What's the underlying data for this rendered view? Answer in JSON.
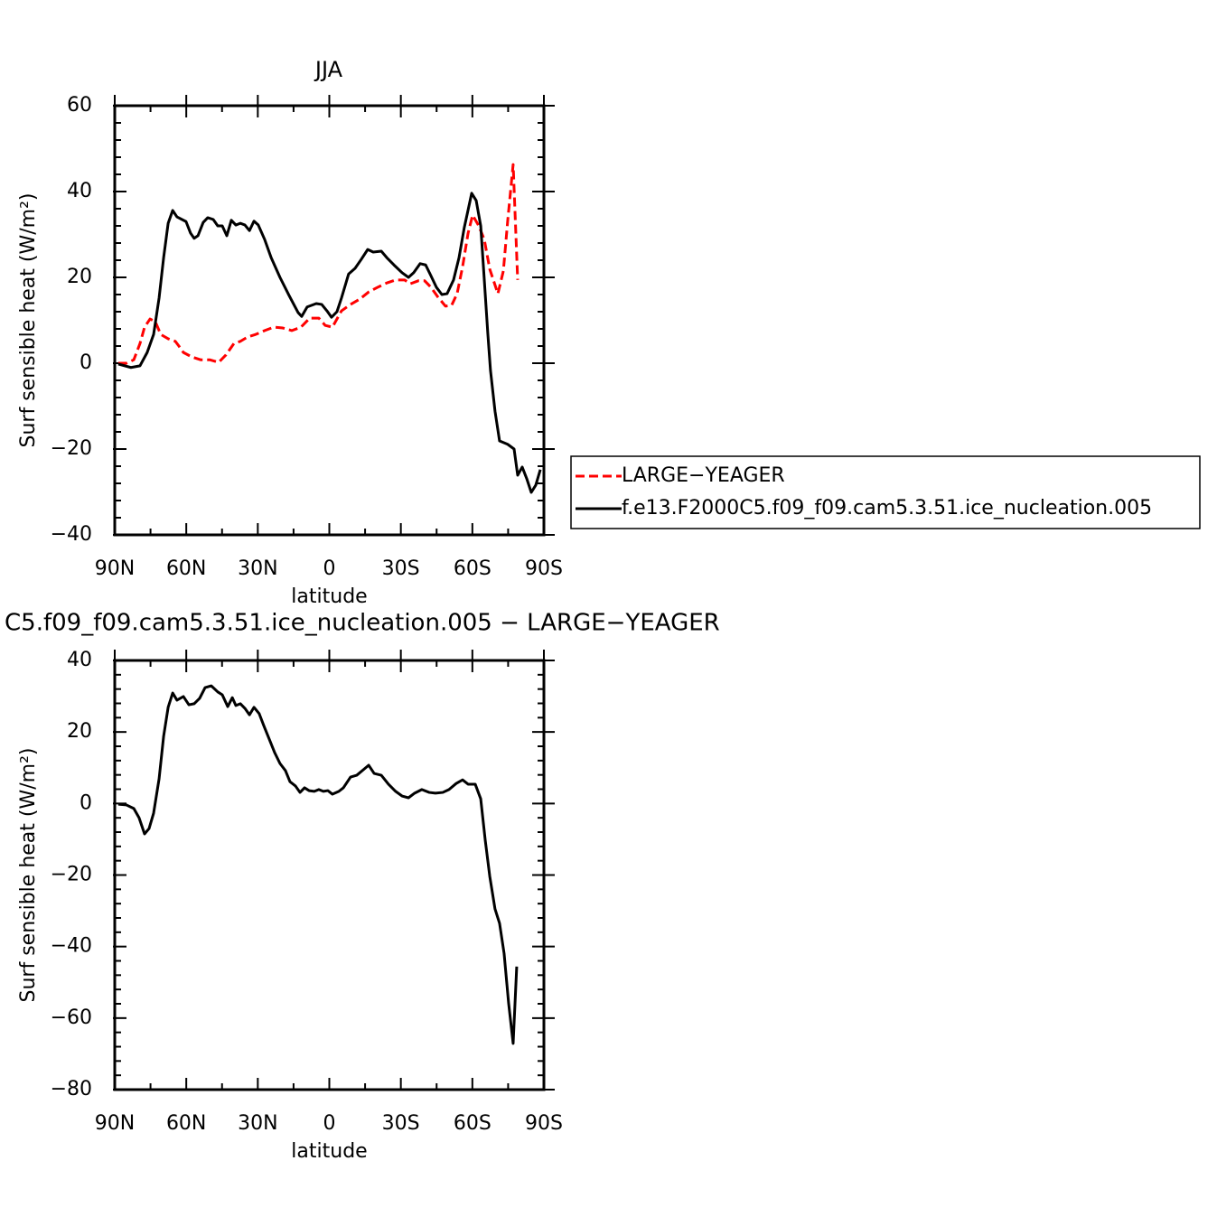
{
  "chart_data": [
    {
      "type": "line",
      "title": "JJA",
      "xlabel": "latitude",
      "ylabel": "Surf sensible heat (W/m²)",
      "xlim": [
        90,
        -90
      ],
      "xticks": [
        {
          "value": 90,
          "label": "90N"
        },
        {
          "value": 60,
          "label": "60N"
        },
        {
          "value": 30,
          "label": "30N"
        },
        0,
        {
          "value": -30,
          "label": "30S"
        },
        {
          "value": -60,
          "label": "60S"
        },
        {
          "value": -90,
          "label": "90S"
        }
      ],
      "ylim": [
        -40,
        60
      ],
      "yticks": [
        {
          "value": -40,
          "label": "−40"
        },
        {
          "value": -20,
          "label": "−20"
        },
        0,
        20,
        40,
        60
      ],
      "series": [
        {
          "name": "LARGE−YEAGER",
          "color": "#ff0000",
          "line_style": "dashed",
          "x": [
            88.5,
            85.1,
            82.0,
            79.4,
            77.5,
            75.2,
            73.0,
            70.7,
            67.6,
            64.6,
            63.1,
            61.2,
            57.8,
            54.0,
            50.2,
            46.4,
            43.4,
            40.0,
            37.3,
            34.3,
            30.9,
            27.1,
            23.3,
            19.5,
            15.7,
            11.9,
            8.2,
            4.4,
            1.7,
            -1.3,
            -5.1,
            -8.9,
            -12.7,
            -16.5,
            -20.3,
            -24.1,
            -27.8,
            -31.6,
            -33.9,
            -37.3,
            -40.0,
            -42.6,
            -45.3,
            -48.7,
            -51.3,
            -53.6,
            -55.9,
            -58.2,
            -60.1,
            -62.7,
            -65.0,
            -67.3,
            -70.7,
            -73.0,
            -74.8,
            -77.1,
            -79.0
          ],
          "values": [
            0,
            0,
            0.8,
            4.6,
            8.4,
            10.3,
            9.7,
            6.7,
            5.7,
            5.1,
            4.0,
            2.5,
            1.5,
            0.8,
            0.8,
            0.2,
            1.9,
            4.6,
            5.1,
            6.1,
            6.7,
            7.6,
            8.4,
            8.2,
            7.6,
            8.4,
            10.5,
            10.5,
            8.8,
            8.4,
            12.2,
            13.7,
            14.9,
            16.6,
            17.7,
            18.7,
            19.4,
            19.4,
            18.5,
            19.2,
            19.2,
            17.7,
            15.6,
            13.3,
            13.5,
            16.2,
            22.5,
            30.3,
            34.5,
            32.0,
            28.8,
            21.9,
            16.2,
            21.5,
            33.1,
            46.3,
            19.4
          ]
        },
        {
          "name": "f.e13.F2000C5.f09_f09.cam5.3.51.ice_nucleation.005",
          "color": "#000000",
          "line_style": "solid",
          "x": [
            88.5,
            83.2,
            79.4,
            76.4,
            73.7,
            71.4,
            69.5,
            67.6,
            65.7,
            63.9,
            60.1,
            58.2,
            56.7,
            55.1,
            52.9,
            51.0,
            48.7,
            46.8,
            44.9,
            43.0,
            41.1,
            39.2,
            37.3,
            35.4,
            33.5,
            31.6,
            29.8,
            27.1,
            24.4,
            20.7,
            16.9,
            13.1,
            11.6,
            9.3,
            5.5,
            3.2,
            1.0,
            -0.9,
            -3.2,
            -5.1,
            -8.1,
            -10.8,
            -13.4,
            -16.1,
            -18.4,
            -21.8,
            -24.1,
            -27.1,
            -30.5,
            -33.2,
            -35.4,
            -38.1,
            -40.4,
            -42.6,
            -44.9,
            -47.2,
            -49.4,
            -52.1,
            -54.4,
            -56.6,
            -58.9,
            -59.7,
            -61.6,
            -63.5,
            -65.0,
            -66.5,
            -67.6,
            -69.5,
            -71.4,
            -74.8,
            -77.5,
            -79.0,
            -80.9,
            -82.8,
            -84.7,
            -86.6,
            -88.5
          ],
          "values": [
            -0.2,
            -1.0,
            -0.6,
            2.5,
            6.7,
            15.2,
            24.6,
            32.6,
            35.6,
            34.1,
            33.0,
            30.3,
            29.1,
            29.7,
            32.8,
            33.9,
            33.5,
            32.0,
            32.0,
            29.7,
            33.3,
            32.2,
            32.6,
            32.2,
            30.9,
            33.1,
            32.2,
            28.8,
            24.6,
            20.0,
            15.8,
            11.8,
            10.9,
            13.1,
            13.9,
            13.7,
            12.2,
            10.7,
            12.0,
            15.2,
            20.8,
            22.1,
            24.2,
            26.5,
            25.9,
            26.1,
            24.6,
            22.9,
            21.1,
            20.0,
            21.1,
            23.2,
            22.9,
            20.4,
            17.7,
            16.0,
            16.2,
            19.4,
            24.6,
            31.6,
            37.5,
            39.6,
            37.9,
            32.0,
            19.4,
            6.7,
            -1.7,
            -11.2,
            -18.1,
            -18.9,
            -20.0,
            -26.1,
            -24.2,
            -26.9,
            -30.1,
            -28.4,
            -24.8
          ]
        }
      ]
    },
    {
      "type": "line",
      "title": "C5.f09_f09.cam5.3.51.ice_nucleation.005 − LARGE−YEAGER",
      "xlabel": "latitude",
      "ylabel": "Surf sensible heat (W/m²)",
      "xlim": [
        90,
        -90
      ],
      "xticks": [
        {
          "value": 90,
          "label": "90N"
        },
        {
          "value": 60,
          "label": "60N"
        },
        {
          "value": 30,
          "label": "30N"
        },
        0,
        {
          "value": -30,
          "label": "30S"
        },
        {
          "value": -60,
          "label": "60S"
        },
        {
          "value": -90,
          "label": "90S"
        }
      ],
      "ylim": [
        -80,
        40
      ],
      "yticks": [
        {
          "value": -80,
          "label": "−80"
        },
        {
          "value": -60,
          "label": "−60"
        },
        {
          "value": -40,
          "label": "−40"
        },
        {
          "value": -20,
          "label": "−20"
        },
        0,
        20,
        40
      ],
      "series": [
        {
          "color": "#000000",
          "line_style": "solid",
          "x": [
            88.5,
            85.1,
            82.0,
            79.8,
            77.5,
            75.6,
            73.7,
            71.4,
            69.5,
            67.6,
            65.7,
            63.9,
            61.2,
            58.9,
            56.7,
            54.4,
            52.1,
            49.5,
            46.8,
            44.9,
            42.6,
            40.7,
            39.2,
            37.3,
            35.4,
            33.5,
            31.6,
            29.4,
            27.5,
            25.2,
            22.9,
            20.7,
            18.4,
            16.5,
            14.2,
            12.3,
            10.4,
            8.5,
            6.3,
            4.4,
            2.5,
            0.6,
            -1.3,
            -4.0,
            -5.9,
            -8.9,
            -11.5,
            -14.2,
            -16.5,
            -18.8,
            -21.8,
            -24.8,
            -27.8,
            -30.5,
            -33.2,
            -35.8,
            -38.8,
            -41.9,
            -44.5,
            -47.6,
            -50.2,
            -53.2,
            -55.9,
            -58.2,
            -61.2,
            -63.5,
            -65.4,
            -67.3,
            -69.5,
            -71.4,
            -73.3,
            -75.2,
            -77.1,
            -78.6
          ],
          "values": [
            -0.2,
            -0.4,
            -1.4,
            -4.0,
            -8.5,
            -7.0,
            -2.7,
            6.9,
            18.8,
            26.9,
            30.9,
            28.9,
            29.9,
            27.6,
            27.9,
            29.4,
            32.4,
            32.9,
            31.2,
            30.4,
            27.1,
            29.6,
            27.4,
            27.9,
            26.6,
            24.8,
            26.9,
            25.1,
            21.8,
            18.0,
            14.2,
            11.2,
            9.2,
            6.1,
            4.9,
            3.1,
            4.4,
            3.6,
            3.4,
            3.9,
            3.4,
            3.6,
            2.6,
            3.4,
            4.4,
            7.4,
            7.9,
            9.4,
            10.7,
            8.4,
            7.9,
            5.4,
            3.4,
            2.1,
            1.6,
            2.9,
            3.9,
            3.1,
            2.9,
            3.1,
            3.9,
            5.6,
            6.6,
            5.4,
            5.4,
            1.3,
            -10.3,
            -20.4,
            -29.5,
            -33.5,
            -41.9,
            -55.8,
            -67.1,
            -45.6
          ]
        }
      ]
    }
  ]
}
